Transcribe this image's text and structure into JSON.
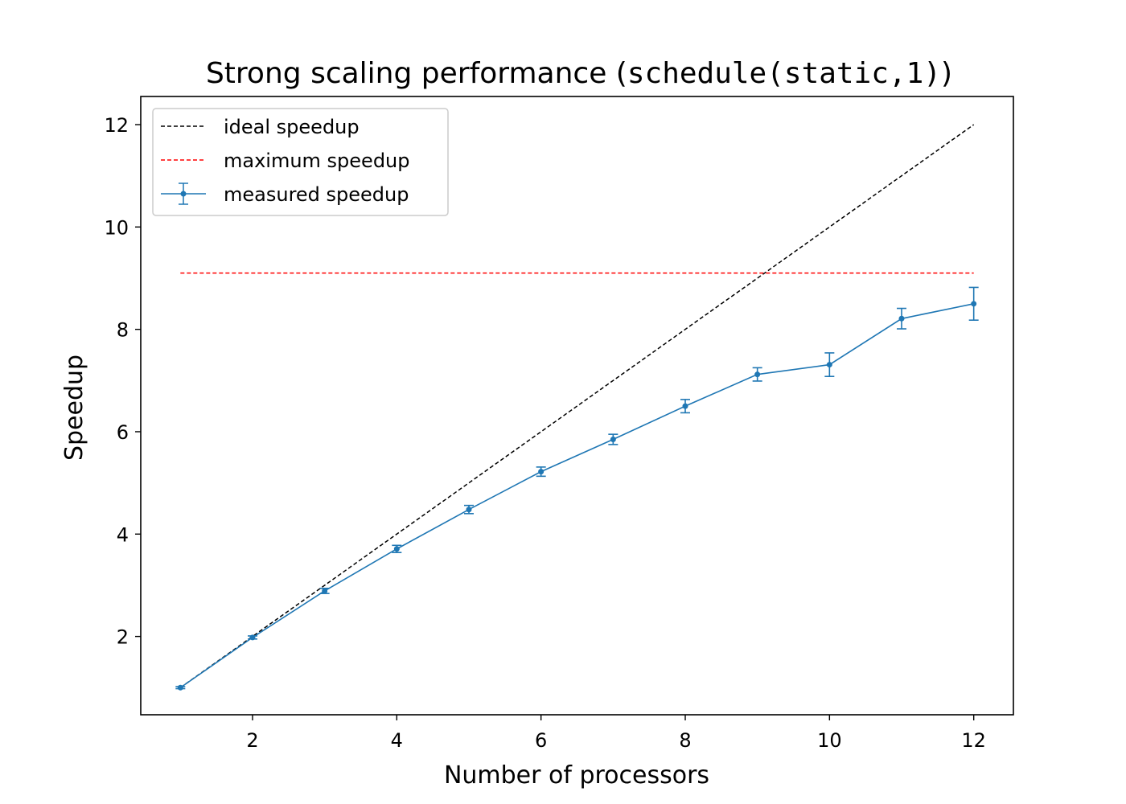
{
  "chart_data": {
    "type": "line",
    "title_prefix": "Strong scaling performance (",
    "title_code": "schedule(static,1)",
    "title_suffix": ")",
    "xlabel": "Number of processors",
    "ylabel": "Speedup",
    "xlim": [
      0.45,
      12.55
    ],
    "ylim": [
      0.47,
      12.55
    ],
    "xticks": [
      2,
      4,
      6,
      8,
      10,
      12
    ],
    "yticks": [
      2,
      4,
      6,
      8,
      10,
      12
    ],
    "grid": false,
    "legend_position": "top-left",
    "series": [
      {
        "name": "ideal speedup",
        "style": "dashed",
        "color": "#000000",
        "x": [
          1,
          12
        ],
        "y": [
          1,
          12
        ]
      },
      {
        "name": "maximum speedup",
        "style": "dashed",
        "color": "#ff0000",
        "x": [
          1,
          12
        ],
        "y": [
          9.1,
          9.1
        ]
      },
      {
        "name": "measured speedup",
        "style": "solid-errorbar",
        "color": "#1f77b4",
        "x": [
          1,
          2,
          3,
          4,
          5,
          6,
          7,
          8,
          9,
          10,
          11,
          12
        ],
        "y": [
          1.0,
          1.98,
          2.89,
          3.71,
          4.48,
          5.22,
          5.85,
          6.5,
          7.12,
          7.31,
          8.21,
          8.5
        ],
        "yerr": [
          0.02,
          0.03,
          0.05,
          0.07,
          0.08,
          0.09,
          0.1,
          0.13,
          0.13,
          0.23,
          0.2,
          0.32
        ]
      }
    ]
  }
}
